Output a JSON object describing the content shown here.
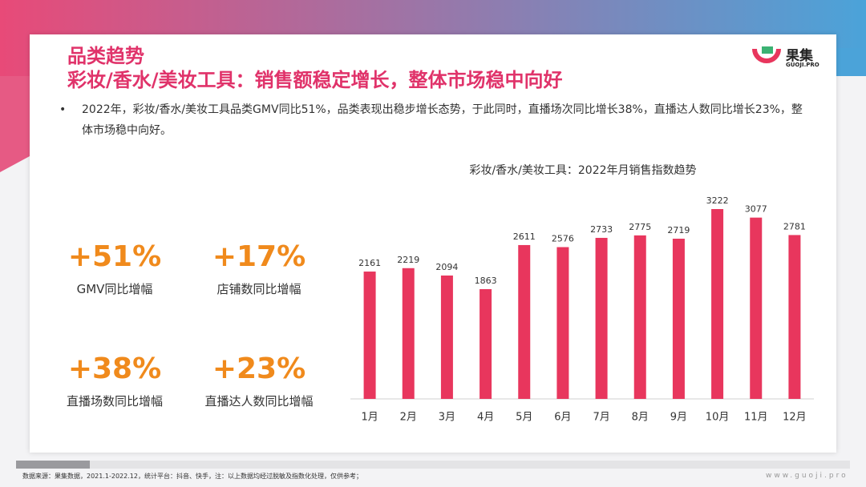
{
  "header": {
    "section": "品类趋势",
    "title": "彩妆/香水/美妆工具：销售额稳定增长，整体市场稳中向好"
  },
  "logo": {
    "name": "果集",
    "domain": "GUOJI.PRO"
  },
  "bullet": "2022年，彩妆/香水/美妆工具品类GMV同比51%，品类表现出稳步增长态势，于此同时，直播场次同比增长38%，直播达人数同比增长23%，整体市场稳中向好。",
  "kpis": [
    {
      "value": "+51%",
      "label": "GMV同比增幅"
    },
    {
      "value": "+17%",
      "label": "店铺数同比增幅"
    },
    {
      "value": "+38%",
      "label": "直播场数同比增幅"
    },
    {
      "value": "+23%",
      "label": "直播达人数同比增幅"
    }
  ],
  "chart_data": {
    "type": "bar",
    "title": "彩妆/香水/美妆工具：2022年月销售指数趋势",
    "categories": [
      "1月",
      "2月",
      "3月",
      "4月",
      "5月",
      "6月",
      "7月",
      "8月",
      "9月",
      "10月",
      "11月",
      "12月"
    ],
    "values": [
      2161,
      2219,
      2094,
      1863,
      2611,
      2576,
      2733,
      2775,
      2719,
      3222,
      3077,
      2781
    ],
    "color": "#e8365d"
  },
  "footer": {
    "source": "数据来源：果集数据，2021.1-2022.12，统计平台：抖音、快手，注：以上数据均经过脱敏及指数化处理，仅供参考；",
    "site": "www.guoji.pro"
  }
}
